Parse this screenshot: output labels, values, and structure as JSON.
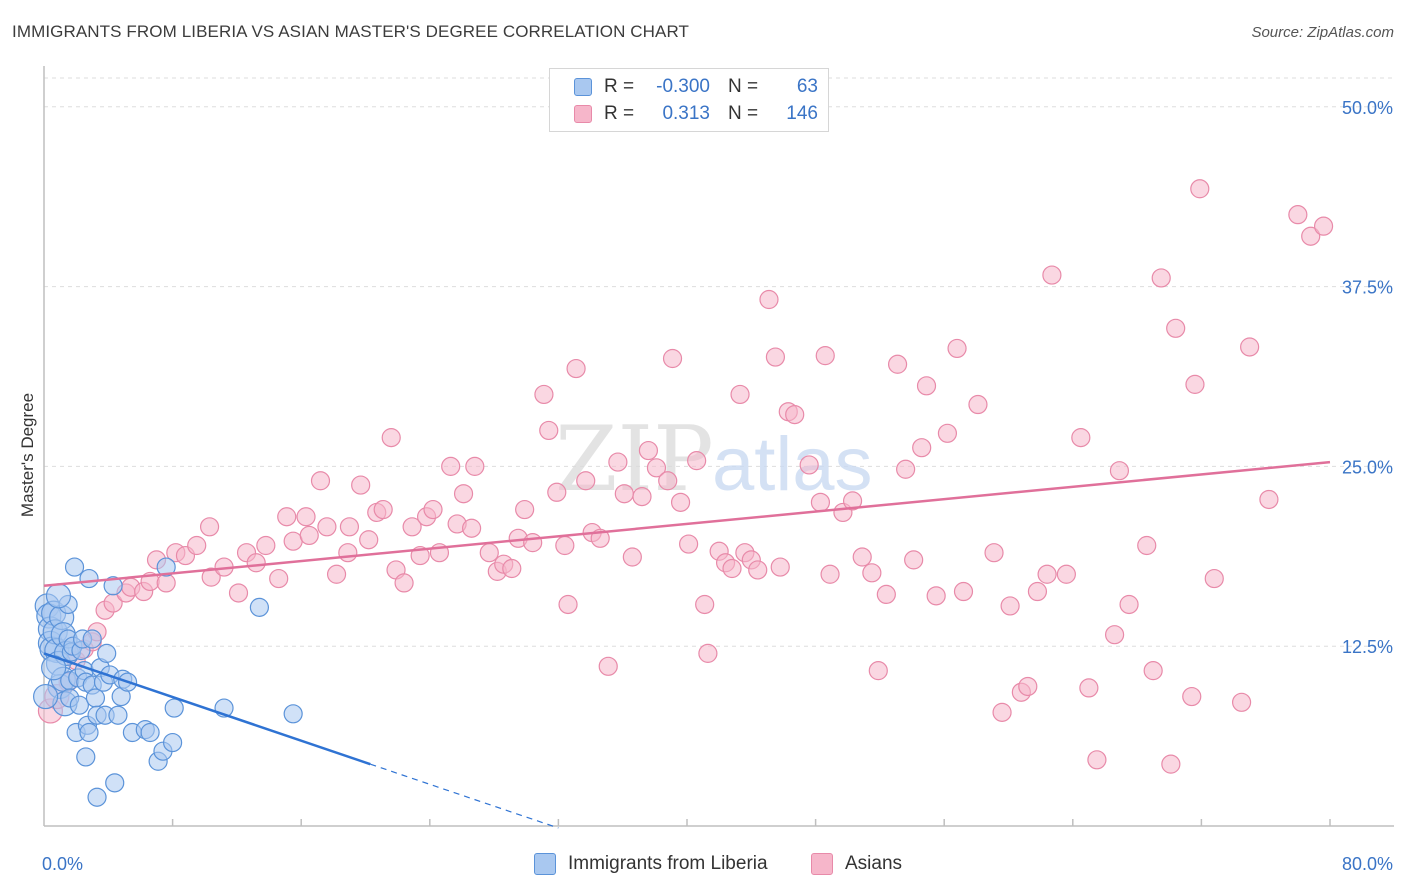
{
  "title": "IMMIGRANTS FROM LIBERIA VS ASIAN MASTER'S DEGREE CORRELATION CHART",
  "source": "Source: ZipAtlas.com",
  "watermark": {
    "zip": "ZIP",
    "atlas": "atlas"
  },
  "colors": {
    "blue_fill": "#a9c8f0",
    "blue_stroke": "#5b93d9",
    "blue_line": "#2f73d3",
    "pink_fill": "#f6b6ca",
    "pink_stroke": "#e88aa9",
    "pink_line": "#e0709a",
    "axis_label": "#3a74c6",
    "grid": "#dddddd"
  },
  "legend": {
    "rows": [
      {
        "r_label": "R =",
        "r_value": "-0.300",
        "n_label": "N =",
        "n_value": "63"
      },
      {
        "r_label": "R =",
        "r_value": "0.313",
        "n_label": "N =",
        "n_value": "146"
      }
    ]
  },
  "bottom_legend": {
    "series1": "Immigrants from Liberia",
    "series2": "Asians"
  },
  "chart_data": {
    "type": "scatter",
    "title": "IMMIGRANTS FROM LIBERIA VS ASIAN MASTER'S DEGREE CORRELATION CHART",
    "xlabel": "",
    "ylabel": "Master's Degree",
    "xlim": [
      0,
      80
    ],
    "ylim": [
      0,
      52
    ],
    "x_tick_labels": [
      "0.0%",
      "80.0%"
    ],
    "y_ticks": [
      12.5,
      25.0,
      37.5,
      50.0
    ],
    "y_tick_labels": [
      "12.5%",
      "25.0%",
      "37.5%",
      "50.0%"
    ],
    "grid": true,
    "series": [
      {
        "name": "Immigrants from Liberia",
        "color": "#a9c8f0",
        "points": [
          [
            0.2,
            15.3
          ],
          [
            0.3,
            14.6
          ],
          [
            0.4,
            13.7
          ],
          [
            0.4,
            12.7
          ],
          [
            0.5,
            12.3
          ],
          [
            0.6,
            14.8
          ],
          [
            0.7,
            13.5
          ],
          [
            0.8,
            12.2
          ],
          [
            0.9,
            11.3
          ],
          [
            1.0,
            9.7
          ],
          [
            1.1,
            14.5
          ],
          [
            1.2,
            13.3
          ],
          [
            1.2,
            10.2
          ],
          [
            1.3,
            8.5
          ],
          [
            1.4,
            12.0
          ],
          [
            1.5,
            15.4
          ],
          [
            1.5,
            13.0
          ],
          [
            1.6,
            10.1
          ],
          [
            1.6,
            8.9
          ],
          [
            1.7,
            12.1
          ],
          [
            1.8,
            12.5
          ],
          [
            1.9,
            18.0
          ],
          [
            2.0,
            6.5
          ],
          [
            2.1,
            10.3
          ],
          [
            2.2,
            8.4
          ],
          [
            2.3,
            12.2
          ],
          [
            2.4,
            13.0
          ],
          [
            2.5,
            10.8
          ],
          [
            2.6,
            10.0
          ],
          [
            2.6,
            4.8
          ],
          [
            2.7,
            7.0
          ],
          [
            2.8,
            6.5
          ],
          [
            2.8,
            17.2
          ],
          [
            3.0,
            9.8
          ],
          [
            3.0,
            13.0
          ],
          [
            3.2,
            8.9
          ],
          [
            3.3,
            7.7
          ],
          [
            3.3,
            2.0
          ],
          [
            3.5,
            11.0
          ],
          [
            3.7,
            10.0
          ],
          [
            3.8,
            7.7
          ],
          [
            3.9,
            12.0
          ],
          [
            4.1,
            10.5
          ],
          [
            4.3,
            16.7
          ],
          [
            4.4,
            3.0
          ],
          [
            4.6,
            7.7
          ],
          [
            4.8,
            9.0
          ],
          [
            4.9,
            10.2
          ],
          [
            5.2,
            10.0
          ],
          [
            5.5,
            6.5
          ],
          [
            6.3,
            6.7
          ],
          [
            6.6,
            6.5
          ],
          [
            7.1,
            4.5
          ],
          [
            7.4,
            5.2
          ],
          [
            7.6,
            18.0
          ],
          [
            8.0,
            5.8
          ],
          [
            8.1,
            8.2
          ],
          [
            11.2,
            8.2
          ],
          [
            13.4,
            15.2
          ],
          [
            15.5,
            7.8
          ],
          [
            0.1,
            9.0
          ],
          [
            0.6,
            11.0
          ],
          [
            0.9,
            16.0
          ]
        ]
      },
      {
        "name": "Asians",
        "color": "#f6b6ca",
        "points": [
          [
            0.4,
            8.0
          ],
          [
            0.8,
            9.0
          ],
          [
            1.5,
            10.0
          ],
          [
            2.0,
            11.5
          ],
          [
            2.5,
            12.3
          ],
          [
            3.0,
            12.8
          ],
          [
            3.3,
            13.5
          ],
          [
            3.8,
            15.0
          ],
          [
            4.3,
            15.5
          ],
          [
            5.1,
            16.2
          ],
          [
            5.4,
            16.6
          ],
          [
            6.2,
            16.3
          ],
          [
            6.6,
            17.0
          ],
          [
            7.0,
            18.5
          ],
          [
            7.6,
            16.9
          ],
          [
            8.2,
            19.0
          ],
          [
            8.8,
            18.8
          ],
          [
            9.5,
            19.5
          ],
          [
            10.4,
            17.3
          ],
          [
            10.3,
            20.8
          ],
          [
            11.2,
            18.0
          ],
          [
            12.1,
            16.2
          ],
          [
            12.6,
            19.0
          ],
          [
            13.2,
            18.3
          ],
          [
            13.8,
            19.5
          ],
          [
            14.6,
            17.2
          ],
          [
            15.1,
            21.5
          ],
          [
            15.5,
            19.8
          ],
          [
            16.3,
            21.5
          ],
          [
            16.5,
            20.2
          ],
          [
            17.2,
            24.0
          ],
          [
            17.6,
            20.8
          ],
          [
            18.2,
            17.5
          ],
          [
            18.9,
            19.0
          ],
          [
            19.0,
            20.8
          ],
          [
            19.7,
            23.7
          ],
          [
            20.2,
            19.9
          ],
          [
            20.7,
            21.8
          ],
          [
            21.1,
            22.0
          ],
          [
            21.6,
            27.0
          ],
          [
            21.9,
            17.8
          ],
          [
            22.4,
            16.9
          ],
          [
            22.9,
            20.8
          ],
          [
            23.4,
            18.8
          ],
          [
            23.8,
            21.5
          ],
          [
            24.2,
            22.0
          ],
          [
            24.6,
            19.0
          ],
          [
            25.3,
            25.0
          ],
          [
            25.7,
            21.0
          ],
          [
            26.1,
            23.1
          ],
          [
            26.6,
            20.7
          ],
          [
            26.8,
            25.0
          ],
          [
            27.7,
            19.0
          ],
          [
            28.2,
            17.7
          ],
          [
            28.6,
            18.2
          ],
          [
            29.1,
            17.9
          ],
          [
            29.5,
            20.0
          ],
          [
            29.9,
            22.0
          ],
          [
            30.4,
            19.7
          ],
          [
            31.1,
            30.0
          ],
          [
            31.4,
            27.5
          ],
          [
            31.9,
            23.2
          ],
          [
            32.4,
            19.5
          ],
          [
            32.6,
            15.4
          ],
          [
            33.1,
            31.8
          ],
          [
            33.7,
            24.0
          ],
          [
            34.1,
            20.4
          ],
          [
            34.6,
            20.0
          ],
          [
            35.1,
            11.1
          ],
          [
            35.7,
            25.3
          ],
          [
            36.1,
            23.1
          ],
          [
            36.6,
            18.7
          ],
          [
            37.2,
            22.9
          ],
          [
            37.6,
            26.1
          ],
          [
            38.1,
            24.9
          ],
          [
            38.8,
            24.0
          ],
          [
            39.1,
            32.5
          ],
          [
            39.6,
            22.5
          ],
          [
            40.1,
            19.6
          ],
          [
            40.6,
            25.4
          ],
          [
            41.1,
            15.4
          ],
          [
            41.3,
            12.0
          ],
          [
            42.0,
            19.1
          ],
          [
            42.4,
            18.3
          ],
          [
            42.8,
            17.9
          ],
          [
            43.3,
            30.0
          ],
          [
            43.6,
            19.0
          ],
          [
            44.0,
            18.5
          ],
          [
            44.4,
            17.8
          ],
          [
            45.1,
            36.6
          ],
          [
            45.5,
            32.6
          ],
          [
            45.8,
            18.0
          ],
          [
            46.3,
            28.8
          ],
          [
            46.7,
            28.6
          ],
          [
            47.6,
            25.1
          ],
          [
            48.3,
            22.5
          ],
          [
            48.6,
            32.7
          ],
          [
            48.9,
            17.5
          ],
          [
            49.7,
            21.8
          ],
          [
            50.3,
            22.6
          ],
          [
            50.9,
            18.7
          ],
          [
            51.5,
            17.6
          ],
          [
            51.9,
            10.8
          ],
          [
            52.4,
            16.1
          ],
          [
            53.1,
            32.1
          ],
          [
            53.6,
            24.8
          ],
          [
            54.1,
            18.5
          ],
          [
            54.6,
            26.3
          ],
          [
            54.9,
            30.6
          ],
          [
            55.5,
            16.0
          ],
          [
            56.2,
            27.3
          ],
          [
            56.8,
            33.2
          ],
          [
            57.2,
            16.3
          ],
          [
            58.1,
            29.3
          ],
          [
            59.1,
            19.0
          ],
          [
            59.6,
            7.9
          ],
          [
            60.1,
            15.3
          ],
          [
            60.8,
            9.3
          ],
          [
            61.2,
            9.7
          ],
          [
            61.8,
            16.3
          ],
          [
            62.4,
            17.5
          ],
          [
            62.7,
            38.3
          ],
          [
            63.6,
            17.5
          ],
          [
            64.5,
            27.0
          ],
          [
            65.0,
            9.6
          ],
          [
            65.5,
            4.6
          ],
          [
            66.6,
            13.3
          ],
          [
            66.9,
            24.7
          ],
          [
            67.5,
            15.4
          ],
          [
            68.6,
            19.5
          ],
          [
            69.0,
            10.8
          ],
          [
            69.5,
            38.1
          ],
          [
            70.1,
            4.3
          ],
          [
            70.4,
            34.6
          ],
          [
            71.4,
            9.0
          ],
          [
            71.6,
            30.7
          ],
          [
            71.9,
            44.3
          ],
          [
            72.8,
            17.2
          ],
          [
            74.5,
            8.6
          ],
          [
            75.0,
            33.3
          ],
          [
            76.2,
            22.7
          ],
          [
            78.0,
            42.5
          ],
          [
            78.8,
            41.0
          ],
          [
            79.6,
            41.7
          ]
        ]
      }
    ],
    "trend_lines": [
      {
        "series": "Immigrants from Liberia",
        "x": [
          0,
          20.3
        ],
        "y": [
          12.0,
          4.3
        ],
        "dashed_extension_to_x": 32
      },
      {
        "series": "Asians",
        "x": [
          0,
          80
        ],
        "y": [
          16.7,
          25.3
        ]
      }
    ]
  }
}
